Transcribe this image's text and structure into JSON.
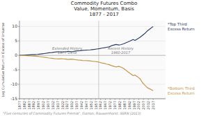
{
  "chart_data": {
    "type": "line",
    "title": "Commodity Futures Combo\nValue, Momentum, Basis\n1877 - 2017",
    "y_label": "Log Cumulative Return in Excess of Universe",
    "footnote": "\"Five centuries of Commodity Futures Premia\", Gorton, Rouwenhorst, SSRN (2013)",
    "x": [
      1877,
      1879,
      1882,
      1885,
      1888,
      1891,
      1893,
      1896,
      1898,
      1901,
      1903,
      1906,
      1908,
      1911,
      1913,
      1916,
      1918,
      1921,
      1923,
      1926,
      1928,
      1931,
      1933,
      1936,
      1938,
      1941,
      1943,
      1946,
      1948,
      1951,
      1953,
      1956,
      1958,
      1961,
      1963,
      1966,
      1968,
      1971,
      1973,
      1976,
      1978,
      1981,
      1983,
      1986,
      1988,
      1991,
      1993,
      1996,
      1998,
      2001,
      2003,
      2006,
      2008,
      2011,
      2013,
      2017
    ],
    "series": [
      {
        "name": "*Top Third\nExcess Return",
        "color": "#2b3d6b",
        "values": [
          0,
          0.02,
          0.06,
          0.12,
          0.18,
          0.24,
          0.28,
          0.35,
          0.42,
          0.55,
          0.65,
          0.78,
          0.9,
          1.0,
          1.1,
          1.2,
          1.25,
          1.15,
          1.2,
          1.3,
          1.4,
          1.3,
          1.35,
          1.5,
          1.6,
          1.65,
          1.75,
          1.8,
          1.85,
          1.9,
          2.0,
          2.1,
          2.2,
          2.35,
          2.5,
          2.65,
          2.8,
          2.95,
          3.3,
          3.6,
          3.8,
          3.6,
          3.7,
          4.0,
          4.3,
          4.7,
          5.0,
          5.5,
          5.2,
          5.8,
          6.2,
          7.0,
          7.5,
          8.5,
          9.0,
          10.0
        ]
      },
      {
        "name": "*Bottom Third\nExcess Return",
        "color": "#c8954a",
        "values": [
          0,
          -0.02,
          -0.06,
          -0.12,
          -0.18,
          -0.24,
          -0.28,
          -0.35,
          -0.42,
          -0.55,
          -0.65,
          -0.78,
          -0.9,
          -1.0,
          -1.1,
          -1.2,
          -1.25,
          -1.15,
          -1.2,
          -1.3,
          -1.4,
          -1.3,
          -1.35,
          -1.5,
          -1.6,
          -1.65,
          -1.75,
          -1.8,
          -1.85,
          -1.9,
          -2.0,
          -2.1,
          -2.2,
          -2.4,
          -2.6,
          -2.8,
          -3.0,
          -3.2,
          -3.5,
          -3.8,
          -4.0,
          -3.8,
          -4.0,
          -4.5,
          -5.0,
          -5.8,
          -6.3,
          -7.0,
          -6.8,
          -7.5,
          -8.0,
          -9.5,
          -10.2,
          -11.2,
          -11.5,
          -12.2
        ]
      }
    ],
    "annotations": [
      {
        "text": "Extended History\n1877-1959",
        "x": 1927,
        "y": 0.3
      },
      {
        "text": "Recent History\n1960-2017",
        "x": 1983,
        "y": 0.3
      }
    ],
    "vline": 1960,
    "hline": 0,
    "xlim": [
      1877,
      2030
    ],
    "xticks": [
      1877,
      1882,
      1887,
      1892,
      1897,
      1902,
      1907,
      1912,
      1917,
      1922,
      1927,
      1932,
      1937,
      1942,
      1947,
      1952,
      1957,
      1962,
      1967,
      1972,
      1977,
      1982,
      1987,
      1992,
      1997,
      2002,
      2007,
      2012,
      2017
    ],
    "ylim": [
      -15,
      12
    ],
    "yticks": [
      -15,
      -10,
      -5,
      0,
      5,
      10
    ],
    "grid": true
  }
}
